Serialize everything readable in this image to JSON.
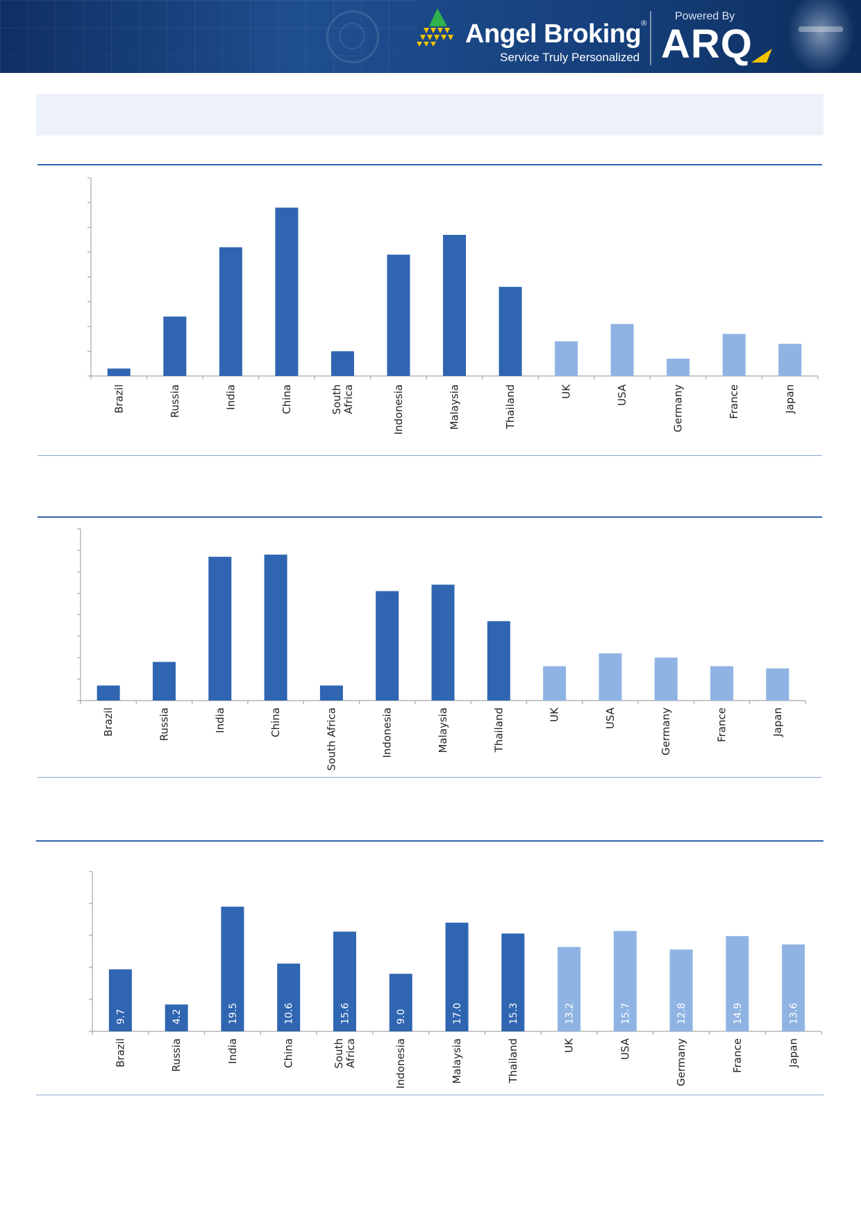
{
  "header": {
    "brand_name": "Angel Broking",
    "brand_registered": "®",
    "tagline": "Service Truly Personalized",
    "powered_by": "Powered By",
    "partner_logo": "ARQ"
  },
  "colors": {
    "emerging": "#2f65b1",
    "developed": "#8fb4e3",
    "header_bg": "#16407c",
    "rule": "#2f63ae"
  },
  "chart_data": [
    {
      "type": "bar",
      "categories": [
        "Brazil",
        "Russia",
        "India",
        "China",
        "South Africa",
        "Indonesia",
        "Malaysia",
        "Thailand",
        "UK",
        "USA",
        "Germany",
        "France",
        "Japan"
      ],
      "category_lines": [
        [
          "Brazil"
        ],
        [
          "Russia"
        ],
        [
          "India"
        ],
        [
          "China"
        ],
        [
          "South",
          "Africa"
        ],
        [
          "Indonesia"
        ],
        [
          "Malaysia"
        ],
        [
          "Thailand"
        ],
        [
          "UK"
        ],
        [
          "USA"
        ],
        [
          "Germany"
        ],
        [
          "France"
        ],
        [
          "Japan"
        ]
      ],
      "values": [
        0.3,
        2.4,
        5.2,
        6.8,
        1.0,
        4.9,
        5.7,
        3.6,
        1.4,
        2.1,
        0.7,
        1.7,
        1.3
      ],
      "groups": [
        "emerging",
        "emerging",
        "emerging",
        "emerging",
        "emerging",
        "emerging",
        "emerging",
        "emerging",
        "developed",
        "developed",
        "developed",
        "developed",
        "developed"
      ],
      "ylim": [
        0,
        8
      ],
      "y_ticks": 8,
      "show_value_labels": false,
      "title": "",
      "xlabel": "",
      "ylabel": ""
    },
    {
      "type": "bar",
      "categories": [
        "Brazil",
        "Russia",
        "India",
        "China",
        "South Africa",
        "Indonesia",
        "Malaysia",
        "Thailand",
        "UK",
        "USA",
        "Germany",
        "France",
        "Japan"
      ],
      "category_lines": [
        [
          "Brazil"
        ],
        [
          "Russia"
        ],
        [
          "India"
        ],
        [
          "China"
        ],
        [
          "South Africa"
        ],
        [
          "Indonesia"
        ],
        [
          "Malaysia"
        ],
        [
          "Thailand"
        ],
        [
          "UK"
        ],
        [
          "USA"
        ],
        [
          "Germany"
        ],
        [
          "France"
        ],
        [
          "Japan"
        ]
      ],
      "values": [
        0.7,
        1.8,
        6.7,
        6.8,
        0.7,
        5.1,
        5.4,
        3.7,
        1.6,
        2.2,
        2.0,
        1.6,
        1.5
      ],
      "groups": [
        "emerging",
        "emerging",
        "emerging",
        "emerging",
        "emerging",
        "emerging",
        "emerging",
        "emerging",
        "developed",
        "developed",
        "developed",
        "developed",
        "developed"
      ],
      "ylim": [
        0,
        8
      ],
      "y_ticks": 8,
      "show_value_labels": false,
      "title": "",
      "xlabel": "",
      "ylabel": ""
    },
    {
      "type": "bar",
      "categories": [
        "Brazil",
        "Russia",
        "India",
        "China",
        "South Africa",
        "Indonesia",
        "Malaysia",
        "Thailand",
        "UK",
        "USA",
        "Germany",
        "France",
        "Japan"
      ],
      "category_lines": [
        [
          "Brazil"
        ],
        [
          "Russia"
        ],
        [
          "India"
        ],
        [
          "China"
        ],
        [
          "South",
          "Africa"
        ],
        [
          "Indonesia"
        ],
        [
          "Malaysia"
        ],
        [
          "Thailand"
        ],
        [
          "UK"
        ],
        [
          "USA"
        ],
        [
          "Germany"
        ],
        [
          "France"
        ],
        [
          "Japan"
        ]
      ],
      "values": [
        9.7,
        4.2,
        19.5,
        10.6,
        15.6,
        9.0,
        17.0,
        15.3,
        13.2,
        15.7,
        12.8,
        14.9,
        13.6
      ],
      "value_labels": [
        "9.7",
        "4.2",
        "19.5",
        "10.6",
        "15.6",
        "9.0",
        "17.0",
        "15.3",
        "13.2",
        "15.7",
        "12.8",
        "14.9",
        "13.6"
      ],
      "groups": [
        "emerging",
        "emerging",
        "emerging",
        "emerging",
        "emerging",
        "emerging",
        "emerging",
        "emerging",
        "developed",
        "developed",
        "developed",
        "developed",
        "developed"
      ],
      "ylim": [
        0,
        25
      ],
      "y_ticks": 5,
      "show_value_labels": true,
      "title": "",
      "xlabel": "",
      "ylabel": ""
    }
  ]
}
